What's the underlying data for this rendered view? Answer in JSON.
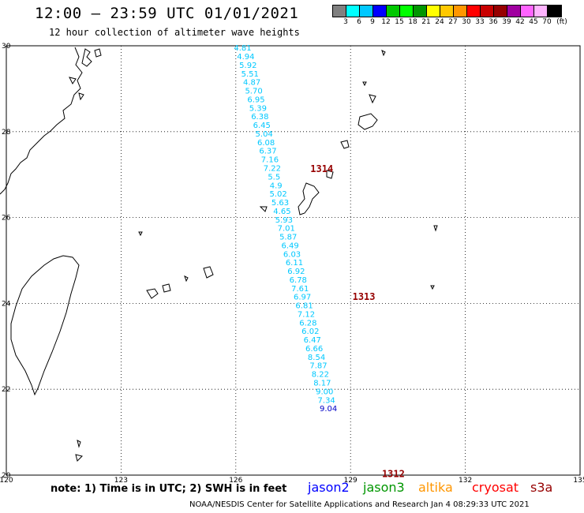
{
  "header": {
    "title": "12:00 – 23:59 UTC 01/01/2021",
    "subtitle": "12 hour collection of altimeter wave heights"
  },
  "legend": {
    "colors": [
      "#808080",
      "#00ffff",
      "#00c8ff",
      "#0000ff",
      "#00c800",
      "#00ff00",
      "#009600",
      "#ffff00",
      "#ffc800",
      "#ff9600",
      "#ff0000",
      "#c80000",
      "#960000",
      "#a000a0",
      "#ff64ff",
      "#ffb4ff",
      "#000000"
    ],
    "ticks": [
      "3",
      "6",
      "9",
      "12",
      "15",
      "18",
      "21",
      "24",
      "27",
      "30",
      "33",
      "36",
      "39",
      "42",
      "45",
      "70",
      "(ft)"
    ]
  },
  "map": {
    "lat_labels": [
      "30",
      "28",
      "26",
      "24",
      "22",
      "20"
    ],
    "lon_labels": [
      "120",
      "123",
      "126",
      "129",
      "132",
      "135"
    ]
  },
  "track": {
    "color": "#00c8ff",
    "observations": [
      {
        "v": "4.81",
        "lon": 126.18,
        "lat": 29.96
      },
      {
        "v": "4.94",
        "lon": 126.26,
        "lat": 29.76
      },
      {
        "v": "5.92",
        "lon": 126.32,
        "lat": 29.56
      },
      {
        "v": "5.51",
        "lon": 126.37,
        "lat": 29.36
      },
      {
        "v": "4.87",
        "lon": 126.42,
        "lat": 29.16
      },
      {
        "v": "5.70",
        "lon": 126.47,
        "lat": 28.96
      },
      {
        "v": "6.95",
        "lon": 126.53,
        "lat": 28.76
      },
      {
        "v": "5.39",
        "lon": 126.58,
        "lat": 28.56
      },
      {
        "v": "6.38",
        "lon": 126.63,
        "lat": 28.36
      },
      {
        "v": "6.45",
        "lon": 126.68,
        "lat": 28.16
      },
      {
        "v": "5.04",
        "lon": 126.74,
        "lat": 27.96
      },
      {
        "v": "6.08",
        "lon": 126.79,
        "lat": 27.76
      },
      {
        "v": "6.37",
        "lon": 126.84,
        "lat": 27.56
      },
      {
        "v": "7.16",
        "lon": 126.89,
        "lat": 27.36
      },
      {
        "v": "7.22",
        "lon": 126.95,
        "lat": 27.16
      },
      {
        "v": "5.5",
        "lon": 127.0,
        "lat": 26.96
      },
      {
        "v": "4.9",
        "lon": 127.05,
        "lat": 26.76
      },
      {
        "v": "5.02",
        "lon": 127.11,
        "lat": 26.56
      },
      {
        "v": "5.63",
        "lon": 127.16,
        "lat": 26.36
      },
      {
        "v": "4.65",
        "lon": 127.21,
        "lat": 26.16
      },
      {
        "v": "5.93",
        "lon": 127.26,
        "lat": 25.96
      },
      {
        "v": "7.01",
        "lon": 127.32,
        "lat": 25.76
      },
      {
        "v": "5.87",
        "lon": 127.37,
        "lat": 25.56
      },
      {
        "v": "6.49",
        "lon": 127.42,
        "lat": 25.36
      },
      {
        "v": "6.03",
        "lon": 127.47,
        "lat": 25.16
      },
      {
        "v": "6.11",
        "lon": 127.53,
        "lat": 24.96
      },
      {
        "v": "6.92",
        "lon": 127.58,
        "lat": 24.76
      },
      {
        "v": "6.78",
        "lon": 127.63,
        "lat": 24.56
      },
      {
        "v": "7.61",
        "lon": 127.68,
        "lat": 24.36
      },
      {
        "v": "6.97",
        "lon": 127.74,
        "lat": 24.16
      },
      {
        "v": "6.81",
        "lon": 127.79,
        "lat": 23.96
      },
      {
        "v": "7.12",
        "lon": 127.84,
        "lat": 23.76
      },
      {
        "v": "6.28",
        "lon": 127.89,
        "lat": 23.56
      },
      {
        "v": "6.02",
        "lon": 127.95,
        "lat": 23.36
      },
      {
        "v": "6.47",
        "lon": 128.0,
        "lat": 23.16
      },
      {
        "v": "6.66",
        "lon": 128.05,
        "lat": 22.96
      },
      {
        "v": "8.54",
        "lon": 128.11,
        "lat": 22.76
      },
      {
        "v": "7.87",
        "lon": 128.16,
        "lat": 22.56
      },
      {
        "v": "8.22",
        "lon": 128.21,
        "lat": 22.36
      },
      {
        "v": "8.17",
        "lon": 128.26,
        "lat": 22.16
      },
      {
        "v": "9.00",
        "lon": 128.32,
        "lat": 21.96
      },
      {
        "v": "7.34",
        "lon": 128.37,
        "lat": 21.76
      },
      {
        "v": "9.04",
        "lon": 128.42,
        "lat": 21.56
      }
    ]
  },
  "passes": [
    {
      "label": "1314",
      "lon": 127.95,
      "lat": 27.13,
      "color": "#960000"
    },
    {
      "label": "1313",
      "lon": 129.05,
      "lat": 24.15,
      "color": "#960000"
    },
    {
      "label": "1312",
      "lon": 129.82,
      "lat": 20.03,
      "color": "#960000"
    }
  ],
  "footer": {
    "note": "note: 1) Time is in UTC; 2) SWH is in feet",
    "satellites": [
      {
        "name": "jason2",
        "color": "#0000ff"
      },
      {
        "name": "jason3",
        "color": "#009600"
      },
      {
        "name": "altika",
        "color": "#ff9600"
      },
      {
        "name": "cryosat",
        "color": "#ff0000"
      },
      {
        "name": "s3a",
        "color": "#960000"
      }
    ],
    "credit": "NOAA/NESDIS Center for Satellite Applications and Research   Jan  4 08:29:33 UTC 2021"
  }
}
